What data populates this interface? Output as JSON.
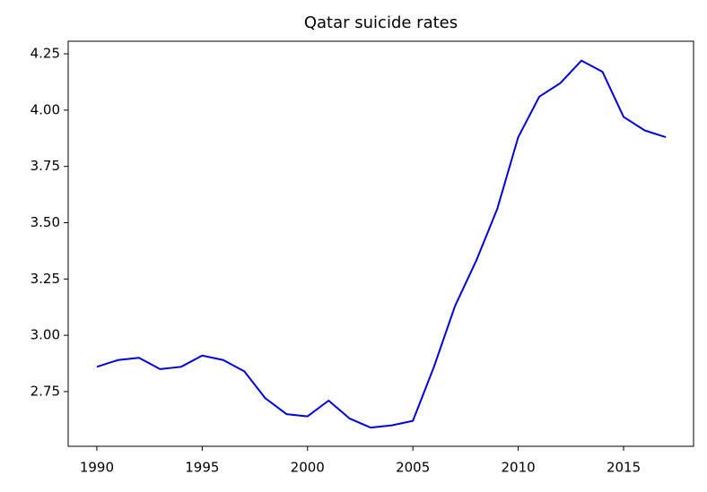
{
  "chart_data": {
    "type": "line",
    "title": "Qatar suicide rates",
    "x": [
      1990,
      1991,
      1992,
      1993,
      1994,
      1995,
      1996,
      1997,
      1998,
      1999,
      2000,
      2001,
      2002,
      2003,
      2004,
      2005,
      2006,
      2007,
      2008,
      2009,
      2010,
      2011,
      2012,
      2013,
      2014,
      2015,
      2016,
      2017
    ],
    "values": [
      2.86,
      2.89,
      2.9,
      2.85,
      2.86,
      2.91,
      2.89,
      2.84,
      2.72,
      2.65,
      2.64,
      2.71,
      2.63,
      2.59,
      2.6,
      2.62,
      2.86,
      3.13,
      3.33,
      3.56,
      3.88,
      4.06,
      4.12,
      4.22,
      4.17,
      3.97,
      3.91,
      3.88
    ],
    "color": "#0000dd",
    "xlim": [
      1988.64,
      2018.32
    ],
    "ylim": [
      2.507,
      4.306
    ],
    "xticks": [
      1990,
      1995,
      2000,
      2005,
      2010,
      2015
    ],
    "yticks": [
      {
        "value": 2.75,
        "label": "2.75"
      },
      {
        "value": 3,
        "label": "3.00"
      },
      {
        "value": 3.25,
        "label": "3.25"
      },
      {
        "value": 3.5,
        "label": "3.50"
      },
      {
        "value": 3.75,
        "label": "3.75"
      },
      {
        "value": 4,
        "label": "4.00"
      },
      {
        "value": 4.25,
        "label": "4.25"
      }
    ],
    "grid": false
  }
}
